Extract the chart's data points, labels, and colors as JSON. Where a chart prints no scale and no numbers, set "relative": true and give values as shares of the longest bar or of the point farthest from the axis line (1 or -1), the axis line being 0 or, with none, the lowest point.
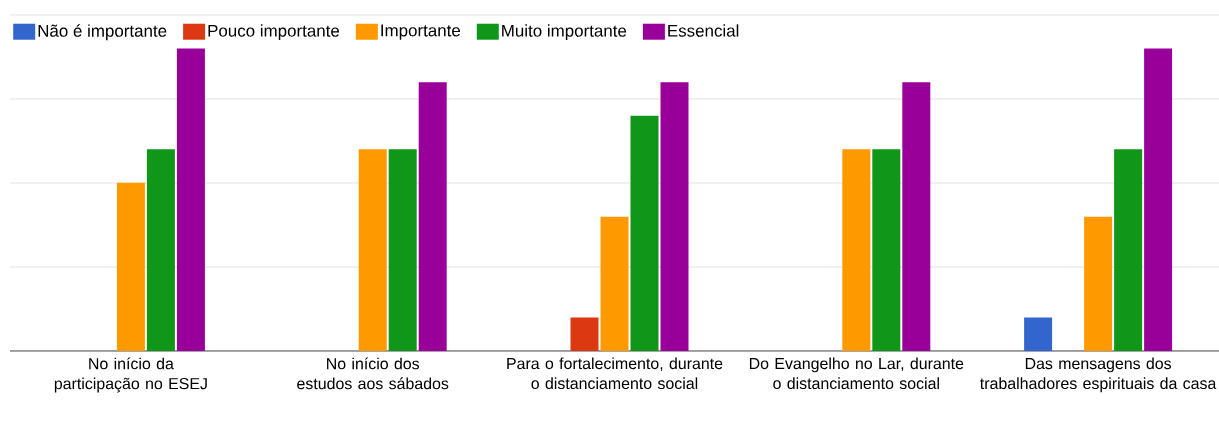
{
  "chart_data": {
    "type": "bar",
    "relative": true,
    "grid": "y",
    "legend": "top left",
    "categories": [
      "No início da participação no ESEJ",
      "No início dos estudos aos sábados",
      "Para o fortalecimento, durante o distanciamento social",
      "Do Evangelho no Lar, durante o distanciamento social",
      "Das mensagens dos trabalhadores espirituais da casa"
    ],
    "series": [
      {
        "name": "Não é importante",
        "color": "#3366cc",
        "values": [
          0,
          0,
          0,
          0,
          0.111
        ]
      },
      {
        "name": "Pouco importante",
        "color": "#dc3912",
        "values": [
          0,
          0,
          0.111,
          0,
          0
        ]
      },
      {
        "name": "Importante",
        "color": "#ff9900",
        "values": [
          0.556,
          0.667,
          0.444,
          0.667,
          0.444
        ]
      },
      {
        "name": "Muito importante",
        "color": "#109618",
        "values": [
          0.667,
          0.667,
          0.778,
          0.667,
          0.667
        ]
      },
      {
        "name": "Essencial",
        "color": "#990099",
        "values": [
          1,
          0.889,
          0.889,
          0.889,
          1
        ]
      }
    ]
  }
}
